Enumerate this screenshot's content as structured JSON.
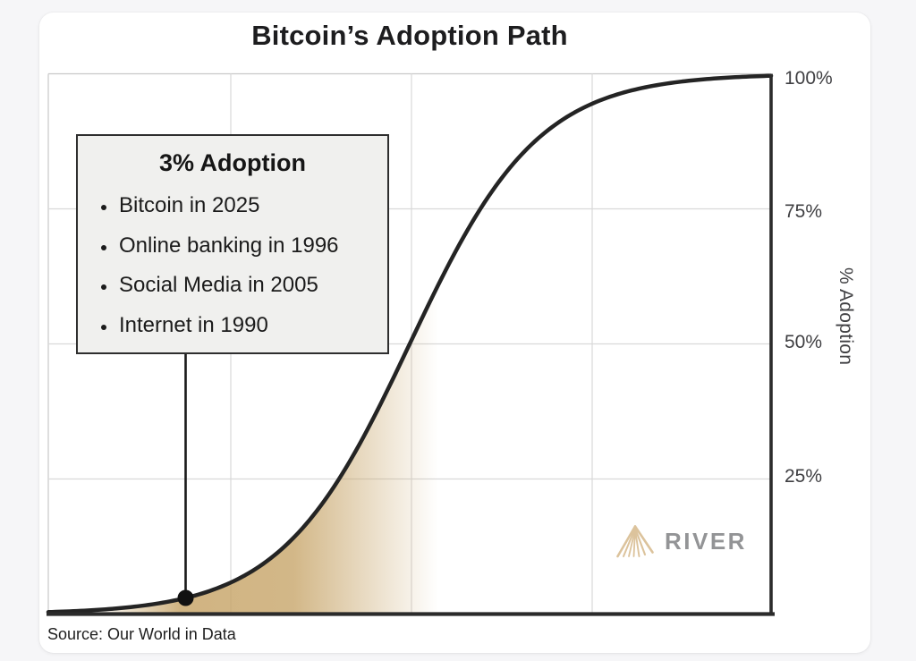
{
  "page": {
    "background_color": "#f6f6f8",
    "card_background": "#ffffff"
  },
  "chart": {
    "title": "Bitcoin’s Adoption Path",
    "source": "Source: Our World in Data",
    "y_axis": {
      "label": "% Adoption",
      "ticks": [
        "100%",
        "75%",
        "50%",
        "25%"
      ]
    },
    "annotation": {
      "title": "3% Adoption",
      "items": [
        "Bitcoin in 2025",
        "Online banking in 1996",
        "Social Media in 2005",
        "Internet in 1990"
      ]
    },
    "watermark": {
      "text": "RIVER",
      "icon": "river-rays-triangle"
    },
    "colors": {
      "curve": "#242424",
      "axis": "#2b2b2b",
      "grid": "#d9d9d9",
      "plot_border": "#c9c9c9",
      "fill_tan": "#c6a366",
      "annotation_bg": "#f0f0ee",
      "annotation_border": "#2e2e2e",
      "watermark_text": "#939496",
      "watermark_icon": "#dcc39c",
      "tick_text": "#3f3f42"
    }
  },
  "chart_data": {
    "type": "line",
    "title": "Bitcoin’s Adoption Path",
    "xlabel": "",
    "ylabel": "% Adoption",
    "ylim": [
      0,
      100
    ],
    "yticks_percent": [
      25,
      50,
      75,
      100
    ],
    "xticks": [],
    "grid": true,
    "legend": false,
    "curve_shape": "logistic_s_curve",
    "logistic": {
      "midpoint_frac": 0.5,
      "scale_frac": 0.089
    },
    "series": [
      {
        "name": "Adoption",
        "x_frac": [
          0,
          0.1,
          0.19,
          0.3,
          0.4,
          0.5,
          0.6,
          0.7,
          0.8,
          0.9,
          1.0
        ],
        "y_pct": [
          0.4,
          1.1,
          3,
          9.6,
          24.5,
          50,
          75.5,
          90.4,
          97,
          98.9,
          99.6
        ]
      }
    ],
    "marker": {
      "x_frac": 0.19,
      "y_pct": 3,
      "label": "3% Adoption"
    },
    "area_fill": {
      "description": "tan gradient under curve, fading in from x_frac 0.06, strongest 0.18-0.34, faded out by 0.54",
      "color": "#c6a366"
    }
  }
}
